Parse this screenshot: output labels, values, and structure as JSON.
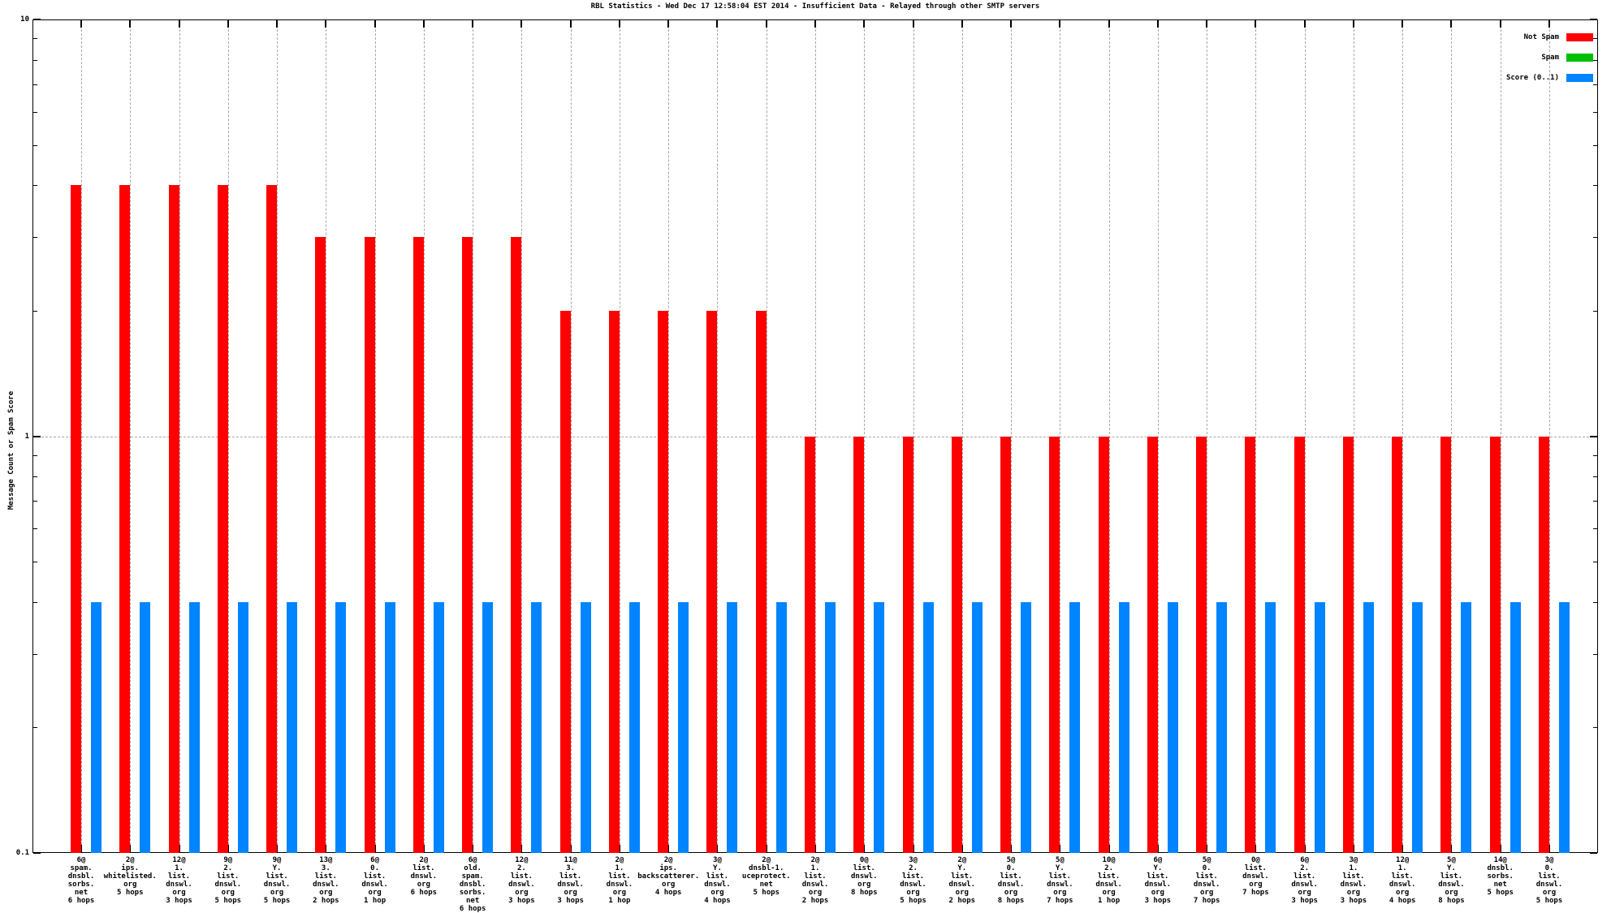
{
  "chart": {
    "title": "RBL Statistics - Wed Dec 17 12:58:04 EST 2014 - Insufficient Data - Relayed through other SMTP servers",
    "ylabel": "Message Count or Spam Score"
  },
  "legend": {
    "position": "top-right",
    "items": [
      {
        "label": "Not Spam",
        "color": "#ff0000"
      },
      {
        "label": "Spam",
        "color": "#00c000"
      },
      {
        "label": "Score (0..1)",
        "color": "#0084ff"
      }
    ]
  },
  "chart_data": {
    "type": "bar",
    "title": "RBL Statistics - Wed Dec 17 12:58:04 EST 2014 - Insufficient Data - Relayed through other SMTP servers",
    "xlabel": "",
    "ylabel": "Message Count or Spam Score",
    "yscale": "log",
    "ylim": [
      0.1,
      10
    ],
    "ytick_labels": [
      "10",
      "1",
      "0.1"
    ],
    "yticks_major": [
      10,
      1,
      0.1
    ],
    "yticks_minor": [
      9,
      8,
      7,
      6,
      5,
      4,
      3,
      2,
      0.9,
      0.8,
      0.7,
      0.6,
      0.5,
      0.4,
      0.3,
      0.2
    ],
    "grid": {
      "vertical": "dashed-per-category",
      "horizontal_at": 1
    },
    "categories": [
      [
        "6@",
        "spam.",
        "dnsbl.",
        "sorbs.",
        "net",
        "6 hops"
      ],
      [
        "2@",
        "ips.",
        "whitelisted.",
        "org",
        "5 hops"
      ],
      [
        "12@",
        "1.",
        "list.",
        "dnswl.",
        "org",
        "3 hops"
      ],
      [
        "9@",
        "2.",
        "list.",
        "dnswl.",
        "org",
        "5 hops"
      ],
      [
        "9@",
        "Y.",
        "list.",
        "dnswl.",
        "org",
        "5 hops"
      ],
      [
        "13@",
        "3.",
        "list.",
        "dnswl.",
        "org",
        "2 hops"
      ],
      [
        "6@",
        "0.",
        "list.",
        "dnswl.",
        "org",
        "1 hop"
      ],
      [
        "2@",
        "list.",
        "dnswl.",
        "org",
        "6 hops"
      ],
      [
        "6@",
        "old.",
        "spam.",
        "dnsbl.",
        "sorbs.",
        "net",
        "6 hops"
      ],
      [
        "12@",
        "2.",
        "list.",
        "dnswl.",
        "org",
        "3 hops"
      ],
      [
        "11@",
        "3.",
        "list.",
        "dnswl.",
        "org",
        "3 hops"
      ],
      [
        "2@",
        "1.",
        "list.",
        "dnswl.",
        "org",
        "1 hop"
      ],
      [
        "2@",
        "ips.",
        "backscatterer.",
        "org",
        "4 hops"
      ],
      [
        "3@",
        "Y.",
        "list.",
        "dnswl.",
        "org",
        "4 hops"
      ],
      [
        "2@",
        "dnsbl-1.",
        "uceprotect.",
        "net",
        "5 hops"
      ],
      [
        "2@",
        "1.",
        "list.",
        "dnswl.",
        "org",
        "2 hops"
      ],
      [
        "0@",
        "list.",
        "dnswl.",
        "org",
        "8 hops"
      ],
      [
        "3@",
        "2.",
        "list.",
        "dnswl.",
        "org",
        "5 hops"
      ],
      [
        "2@",
        "Y.",
        "list.",
        "dnswl.",
        "org",
        "2 hops"
      ],
      [
        "5@",
        "0.",
        "list.",
        "dnswl.",
        "org",
        "8 hops"
      ],
      [
        "5@",
        "Y.",
        "list.",
        "dnswl.",
        "org",
        "7 hops"
      ],
      [
        "10@",
        "2.",
        "list.",
        "dnswl.",
        "org",
        "1 hop"
      ],
      [
        "6@",
        "Y.",
        "list.",
        "dnswl.",
        "org",
        "3 hops"
      ],
      [
        "5@",
        "0.",
        "list.",
        "dnswl.",
        "org",
        "7 hops"
      ],
      [
        "0@",
        "list.",
        "dnswl.",
        "org",
        "7 hops"
      ],
      [
        "6@",
        "2.",
        "list.",
        "dnswl.",
        "org",
        "3 hops"
      ],
      [
        "3@",
        "1.",
        "list.",
        "dnswl.",
        "org",
        "3 hops"
      ],
      [
        "12@",
        "1.",
        "list.",
        "dnswl.",
        "org",
        "4 hops"
      ],
      [
        "5@",
        "Y.",
        "list.",
        "dnswl.",
        "org",
        "8 hops"
      ],
      [
        "14@",
        "dnsbl.",
        "sorbs.",
        "net",
        "5 hops"
      ],
      [
        "3@",
        "0.",
        "list.",
        "dnswl.",
        "org",
        "5 hops"
      ]
    ],
    "series": [
      {
        "name": "Not Spam",
        "color": "#ff0000",
        "values": [
          4,
          4,
          4,
          4,
          4,
          3,
          3,
          3,
          3,
          3,
          2,
          2,
          2,
          2,
          2,
          1,
          1,
          1,
          1,
          1,
          1,
          1,
          1,
          1,
          1,
          1,
          1,
          1,
          1,
          1,
          1
        ]
      },
      {
        "name": "Spam",
        "color": "#00c000",
        "values": [
          0,
          0,
          0,
          0,
          0,
          0,
          0,
          0,
          0,
          0,
          0,
          0,
          0,
          0,
          0,
          0,
          0,
          0,
          0,
          0,
          0,
          0,
          0,
          0,
          0,
          0,
          0,
          0,
          0,
          0,
          0
        ]
      },
      {
        "name": "Score (0..1)",
        "color": "#0084ff",
        "values": [
          0.4,
          0.4,
          0.4,
          0.4,
          0.4,
          0.4,
          0.4,
          0.4,
          0.4,
          0.4,
          0.4,
          0.4,
          0.4,
          0.4,
          0.4,
          0.4,
          0.4,
          0.4,
          0.4,
          0.4,
          0.4,
          0.4,
          0.4,
          0.4,
          0.4,
          0.4,
          0.4,
          0.4,
          0.4,
          0.4,
          0.4
        ]
      }
    ]
  }
}
